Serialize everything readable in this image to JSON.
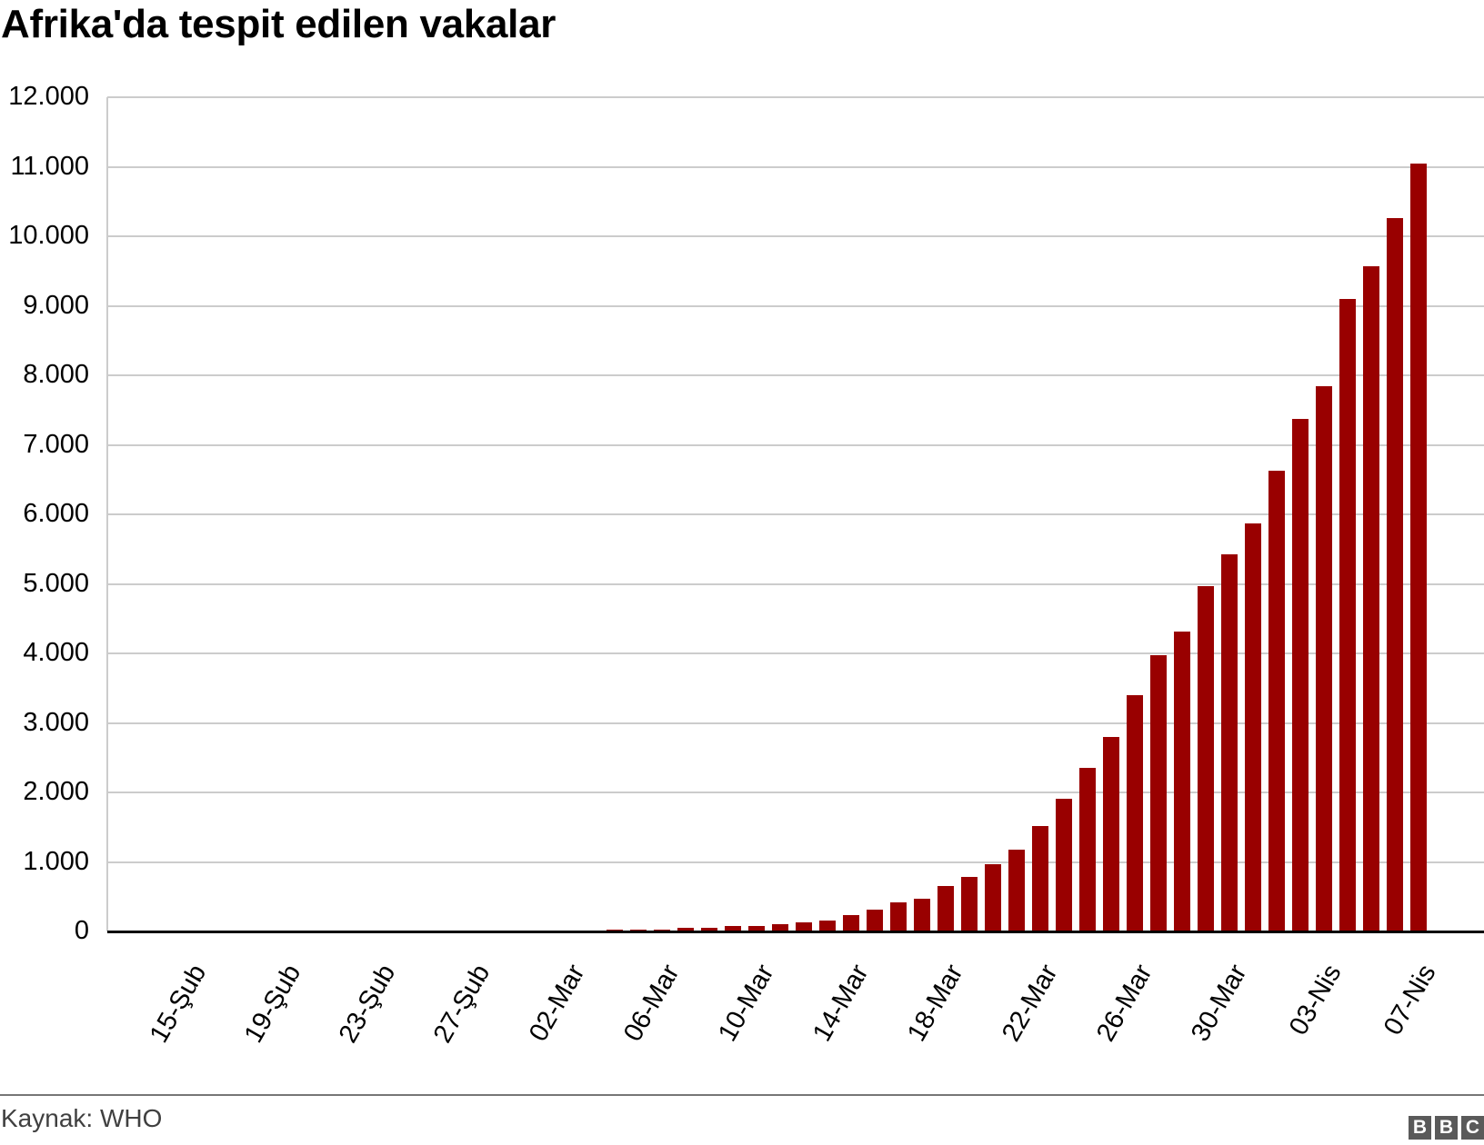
{
  "header": {
    "title": "Afrika'da tespit edilen vakalar"
  },
  "footer": {
    "source": "Kaynak: WHO",
    "logo": [
      "B",
      "B",
      "C"
    ]
  },
  "colors": {
    "bar": "#990000",
    "grid": "#cccccc",
    "baseline": "#000000",
    "footer_rule": "#767676"
  },
  "y_ticks": [
    "12.000",
    "11.000",
    "10.000",
    "9.000",
    "8.000",
    "7.000",
    "6.000",
    "5.000",
    "4.000",
    "3.000",
    "2.000",
    "1.000",
    "0"
  ],
  "x_tick_labels": [
    "15-Şub",
    "19-Şub",
    "23-Şub",
    "27-Şub",
    "02-Mar",
    "06-Mar",
    "10-Mar",
    "14-Mar",
    "18-Mar",
    "22-Mar",
    "26-Mar",
    "30-Mar",
    "03-Nis",
    "07-Nis"
  ],
  "chart_data": {
    "type": "bar",
    "title": "Afrika'da tespit edilen vakalar",
    "xlabel": "",
    "ylabel": "",
    "ylim": [
      0,
      12000
    ],
    "grid": true,
    "legend": null,
    "source": "Kaynak: WHO",
    "categories": [
      "15-Şub",
      "16-Şub",
      "17-Şub",
      "18-Şub",
      "19-Şub",
      "20-Şub",
      "21-Şub",
      "22-Şub",
      "23-Şub",
      "24-Şub",
      "25-Şub",
      "26-Şub",
      "27-Şub",
      "28-Şub",
      "29-Şub",
      "01-Mar",
      "02-Mar",
      "03-Mar",
      "04-Mar",
      "05-Mar",
      "06-Mar",
      "07-Mar",
      "08-Mar",
      "09-Mar",
      "10-Mar",
      "11-Mar",
      "12-Mar",
      "13-Mar",
      "14-Mar",
      "15-Mar",
      "16-Mar",
      "17-Mar",
      "18-Mar",
      "19-Mar",
      "20-Mar",
      "21-Mar",
      "22-Mar",
      "23-Mar",
      "24-Mar",
      "25-Mar",
      "26-Mar",
      "27-Mar",
      "28-Mar",
      "29-Mar",
      "30-Mar",
      "31-Mar",
      "01-Nis",
      "02-Nis",
      "03-Nis",
      "04-Nis",
      "05-Nis",
      "06-Nis",
      "07-Nis"
    ],
    "values": [
      0,
      0,
      0,
      0,
      0,
      0,
      0,
      0,
      0,
      0,
      0,
      0,
      0,
      0,
      0,
      0,
      0,
      0,
      25,
      25,
      25,
      55,
      55,
      80,
      80,
      105,
      130,
      155,
      235,
      315,
      420,
      470,
      650,
      785,
      970,
      1180,
      1520,
      1910,
      2350,
      2800,
      3400,
      3975,
      4320,
      4970,
      5420,
      5870,
      6630,
      7370,
      7840,
      9100,
      9570,
      10260,
      11050
    ],
    "tick_every": 4
  }
}
